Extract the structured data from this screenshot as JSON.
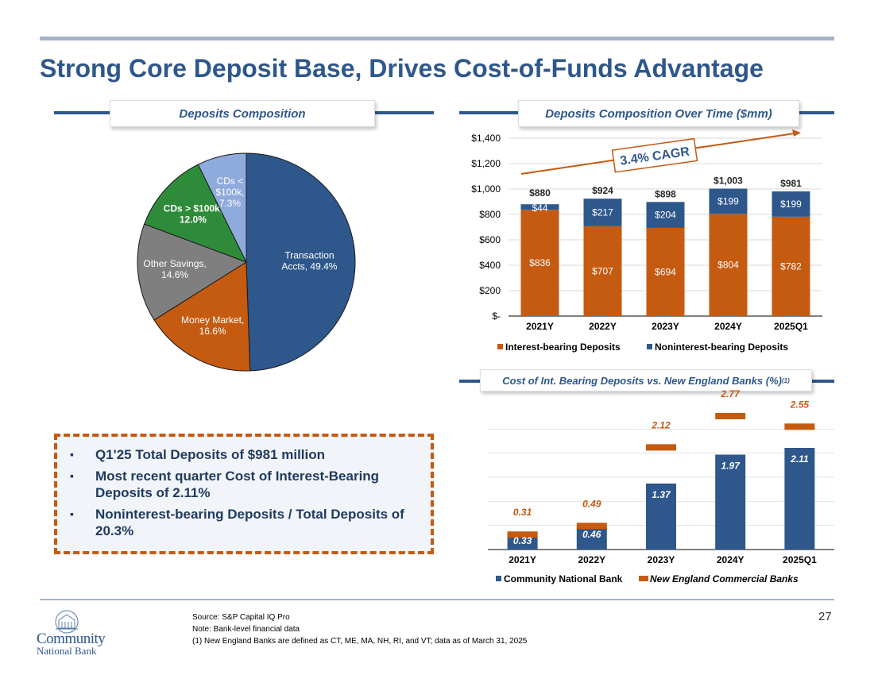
{
  "slide": {
    "title": "Strong Core Deposit Base, Drives Cost-of-Funds Advantage",
    "page_number": "27"
  },
  "sections": {
    "pie_title": "Deposits Composition",
    "bar_title": "Deposits Composition Over Time ($mm)",
    "cost_title": "Cost of Int. Bearing Deposits vs. New England Banks (%)",
    "cost_title_sup": "(1)"
  },
  "chart_data": [
    {
      "type": "pie",
      "slices": [
        {
          "label_lines": [
            "Transaction",
            "Accts, 49.4%"
          ],
          "value": 49.4,
          "color": "#2e578c",
          "text_color": "#ffffff",
          "bold": false
        },
        {
          "label_lines": [
            "Money Market,",
            "16.6%"
          ],
          "value": 16.6,
          "color": "#c55a11",
          "text_color": "#ffffff",
          "bold": false
        },
        {
          "label_lines": [
            "Other Savings,",
            "14.6%"
          ],
          "value": 14.6,
          "color": "#7f7f7f",
          "text_color": "#ffffff",
          "bold": false
        },
        {
          "label_lines": [
            "CDs > $100k,",
            "12.0%"
          ],
          "value": 12.0,
          "color": "#2e8b3a",
          "text_color": "#ffffff",
          "bold": true
        },
        {
          "label_lines": [
            "CDs <",
            "$100k,",
            "7.3%"
          ],
          "value": 7.3,
          "color": "#8faadc",
          "text_color": "#ffffff",
          "bold": false
        }
      ]
    },
    {
      "type": "bar",
      "stacked": true,
      "categories": [
        "2021Y",
        "2022Y",
        "2023Y",
        "2024Y",
        "2025Q1"
      ],
      "series": [
        {
          "name": "Interest-bearing Deposits",
          "values": [
            836,
            707,
            694,
            804,
            782
          ],
          "labels": [
            "$836",
            "$707",
            "$694",
            "$804",
            "$782"
          ],
          "color": "#c55a11"
        },
        {
          "name": "Noninterest-bearing Deposits",
          "values": [
            44,
            217,
            204,
            199,
            199
          ],
          "labels": [
            "$44",
            "$217",
            "$204",
            "$199",
            "$199"
          ],
          "color": "#2e578c"
        }
      ],
      "totals": [
        "$880",
        "$924",
        "$898",
        "$1,003",
        "$981"
      ],
      "ylim": [
        0,
        1400
      ],
      "yticks": [
        0,
        200,
        400,
        600,
        800,
        1000,
        1200,
        1400
      ],
      "ytick_labels": [
        "$-",
        "$200",
        "$400",
        "$600",
        "$800",
        "$1,000",
        "$1,200",
        "$1,400"
      ],
      "annotation": "3.4% CAGR",
      "legend": "bottom"
    },
    {
      "type": "bar",
      "categories": [
        "2021Y",
        "2022Y",
        "2023Y",
        "2024Y",
        "2025Q1"
      ],
      "series": [
        {
          "name": "Community National Bank",
          "values": [
            0.33,
            0.46,
            1.37,
            1.97,
            2.11
          ],
          "labels": [
            "0.33",
            "0.46",
            "1.37",
            "1.97",
            "2.11"
          ],
          "color": "#2e578c",
          "kind": "bar"
        },
        {
          "name": "New England Commercial Banks",
          "values": [
            0.31,
            0.49,
            2.12,
            2.77,
            2.55
          ],
          "labels": [
            "0.31",
            "0.49",
            "2.12",
            "2.77",
            "2.55"
          ],
          "color": "#c55a11",
          "kind": "marker"
        }
      ],
      "ylim": [
        0,
        3.0
      ],
      "legend": "bottom"
    }
  ],
  "callout": {
    "bullet_glyph": "▪",
    "items": [
      "Q1'25 Total Deposits of $981 million",
      "Most recent quarter Cost of Interest-Bearing Deposits of 2.11%",
      "Noninterest-bearing Deposits / Total Deposits of 20.3%"
    ]
  },
  "footer": {
    "logo_line1": "Community",
    "logo_line2": "National Bank",
    "source": "Source: S&P Capital IQ Pro",
    "note": "Note: Bank-level financial data",
    "footnote1": "(1) New England Banks are defined as CT, ME, MA, NH, RI, and VT; data as of March 31, 2025"
  }
}
